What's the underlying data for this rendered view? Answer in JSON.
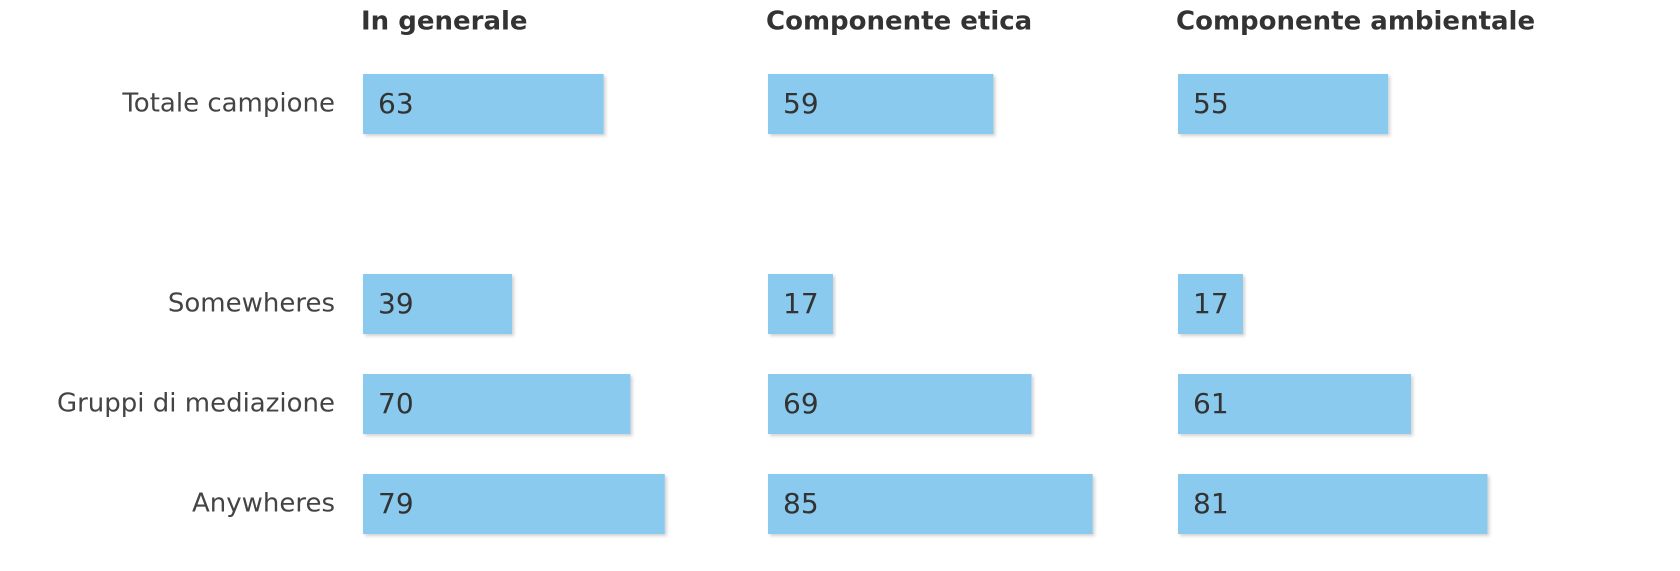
{
  "chart_data": {
    "type": "bar",
    "orientation": "horizontal",
    "categories": [
      "Totale campione",
      null,
      "Somewheres",
      "Gruppi di mediazione",
      "Anywheres"
    ],
    "series": [
      {
        "name": "In generale",
        "color": "#89caee",
        "values": [
          63,
          null,
          39,
          70,
          79
        ]
      },
      {
        "name": "Componente etica",
        "color": "#89caee",
        "values": [
          59,
          null,
          17,
          69,
          85
        ]
      },
      {
        "name": "Componente ambientale",
        "color": "#89caee",
        "values": [
          55,
          null,
          17,
          61,
          81
        ]
      }
    ],
    "xlim": [
      0,
      100
    ]
  }
}
